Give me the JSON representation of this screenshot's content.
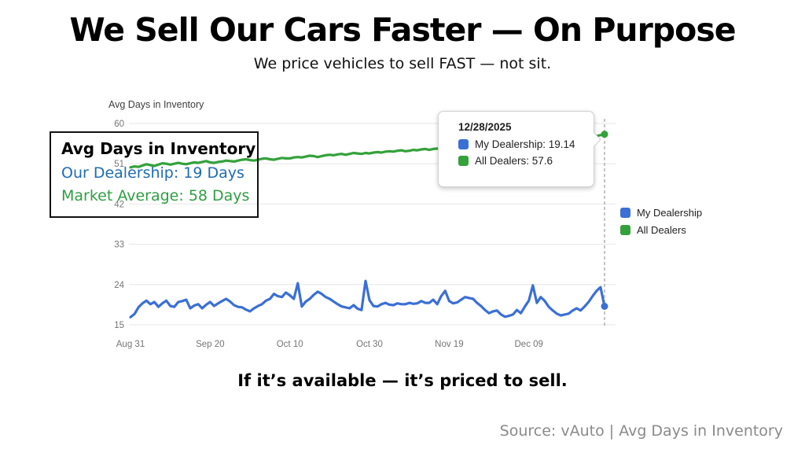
{
  "page": {
    "title": "We Sell Our Cars Faster — On Purpose",
    "subtitle": "We price vehicles to sell FAST — not sit.",
    "bottom_headline": "If it’s available — it’s priced to sell.",
    "source": "Source: vAuto | Avg Days in Inventory"
  },
  "annotation_box": {
    "title": "Avg Days in Inventory",
    "line1": "Our Dealership: 19 Days",
    "line2": "Market Average: 58 Days",
    "line1_color": "#1f6cb3",
    "line2_color": "#2f9e43"
  },
  "tooltip": {
    "date": "12/28/2025",
    "items": [
      {
        "label": "My Dealership: 19.14",
        "color": "#3b6fd6"
      },
      {
        "label": "All Dealers: 57.6",
        "color": "#34a13b"
      }
    ]
  },
  "legend": [
    {
      "label": "My Dealership",
      "color": "#3b6fd6"
    },
    {
      "label": "All Dealers",
      "color": "#34a13b"
    }
  ],
  "chart_data": {
    "type": "line",
    "title": "Avg Days in Inventory",
    "x_tick_labels": [
      "Aug 31",
      "Sep 20",
      "Oct 10",
      "Oct 30",
      "Nov 19",
      "Dec 09"
    ],
    "x_tick_days": [
      0,
      20,
      40,
      60,
      80,
      100
    ],
    "x_total_days": 119,
    "x_range": [
      "Aug 31",
      "Dec 28 (12/28/2025)"
    ],
    "y_ticks": [
      15,
      24,
      33,
      42,
      51,
      60
    ],
    "ylim": [
      15,
      60
    ],
    "grid": true,
    "legend_position": "right",
    "hover_date": "12/28/2025",
    "colors": {
      "grid": "#e6e6e6",
      "tick": "#757575",
      "dash": "#9e9e9e",
      "axis_title": "#3c3c3c"
    },
    "series": [
      {
        "name": "My Dealership",
        "color": "#3b6fd6",
        "final_value": 19.14,
        "values": [
          16.7,
          17.4,
          18.9,
          19.8,
          20.4,
          19.6,
          20.1,
          19.0,
          19.8,
          20.4,
          19.2,
          19.0,
          20.1,
          20.3,
          20.6,
          18.7,
          19.3,
          19.6,
          18.7,
          19.5,
          20.1,
          19.2,
          19.8,
          20.3,
          20.8,
          20.2,
          19.4,
          19.0,
          18.9,
          18.4,
          18.0,
          18.7,
          19.2,
          19.6,
          20.4,
          20.8,
          21.9,
          21.4,
          21.2,
          22.2,
          21.6,
          20.8,
          24.3,
          19.1,
          20.2,
          20.8,
          21.7,
          22.4,
          21.9,
          21.2,
          20.8,
          20.2,
          19.6,
          19.1,
          18.9,
          18.7,
          19.4,
          18.6,
          18.3,
          24.8,
          20.5,
          19.2,
          19.1,
          19.6,
          19.9,
          19.5,
          19.4,
          19.8,
          19.6,
          19.6,
          19.9,
          19.7,
          19.8,
          20.3,
          19.9,
          19.9,
          20.6,
          19.6,
          21.4,
          22.6,
          20.3,
          19.8,
          20.0,
          20.6,
          21.2,
          21.0,
          20.8,
          19.9,
          19.2,
          18.3,
          17.6,
          18.0,
          18.2,
          17.3,
          16.8,
          17.0,
          17.3,
          18.3,
          17.6,
          19.1,
          20.4,
          23.8,
          19.9,
          21.2,
          20.3,
          19.0,
          18.2,
          17.5,
          17.1,
          17.3,
          17.5,
          18.2,
          18.7,
          18.2,
          19.1,
          20.1,
          21.4,
          22.6,
          23.4,
          19.14
        ]
      },
      {
        "name": "All Dealers",
        "color": "#34a13b",
        "final_value": 57.6,
        "values": [
          50.2,
          50.4,
          50.3,
          50.6,
          50.9,
          50.7,
          50.5,
          50.8,
          51.1,
          51.0,
          50.8,
          51.0,
          51.2,
          51.0,
          50.9,
          51.1,
          51.3,
          51.2,
          51.4,
          51.6,
          51.3,
          51.2,
          51.4,
          51.5,
          51.7,
          51.6,
          51.5,
          51.7,
          51.9,
          52.0,
          51.8,
          51.7,
          51.9,
          52.1,
          52.2,
          52.0,
          51.9,
          52.1,
          52.3,
          52.2,
          52.2,
          52.4,
          52.5,
          52.4,
          52.6,
          52.8,
          52.7,
          52.5,
          52.7,
          52.9,
          53.0,
          52.9,
          53.1,
          53.2,
          53.0,
          53.2,
          53.4,
          53.3,
          53.2,
          53.4,
          53.3,
          53.5,
          53.6,
          53.5,
          53.7,
          53.8,
          53.7,
          53.9,
          54.0,
          53.8,
          53.9,
          54.1,
          54.0,
          54.2,
          54.3,
          54.1,
          54.3,
          54.4,
          54.3,
          54.5,
          54.6,
          54.5,
          54.7,
          54.8,
          54.7,
          54.9,
          55.0,
          54.9,
          55.1,
          55.2,
          55.1,
          55.3,
          55.4,
          55.3,
          55.5,
          55.6,
          55.5,
          55.7,
          55.8,
          55.7,
          55.9,
          56.0,
          55.9,
          56.1,
          56.2,
          56.1,
          56.3,
          56.4,
          56.3,
          56.5,
          56.6,
          56.5,
          56.7,
          56.8,
          56.7,
          56.9,
          57.0,
          57.2,
          57.4,
          57.6
        ]
      }
    ]
  }
}
